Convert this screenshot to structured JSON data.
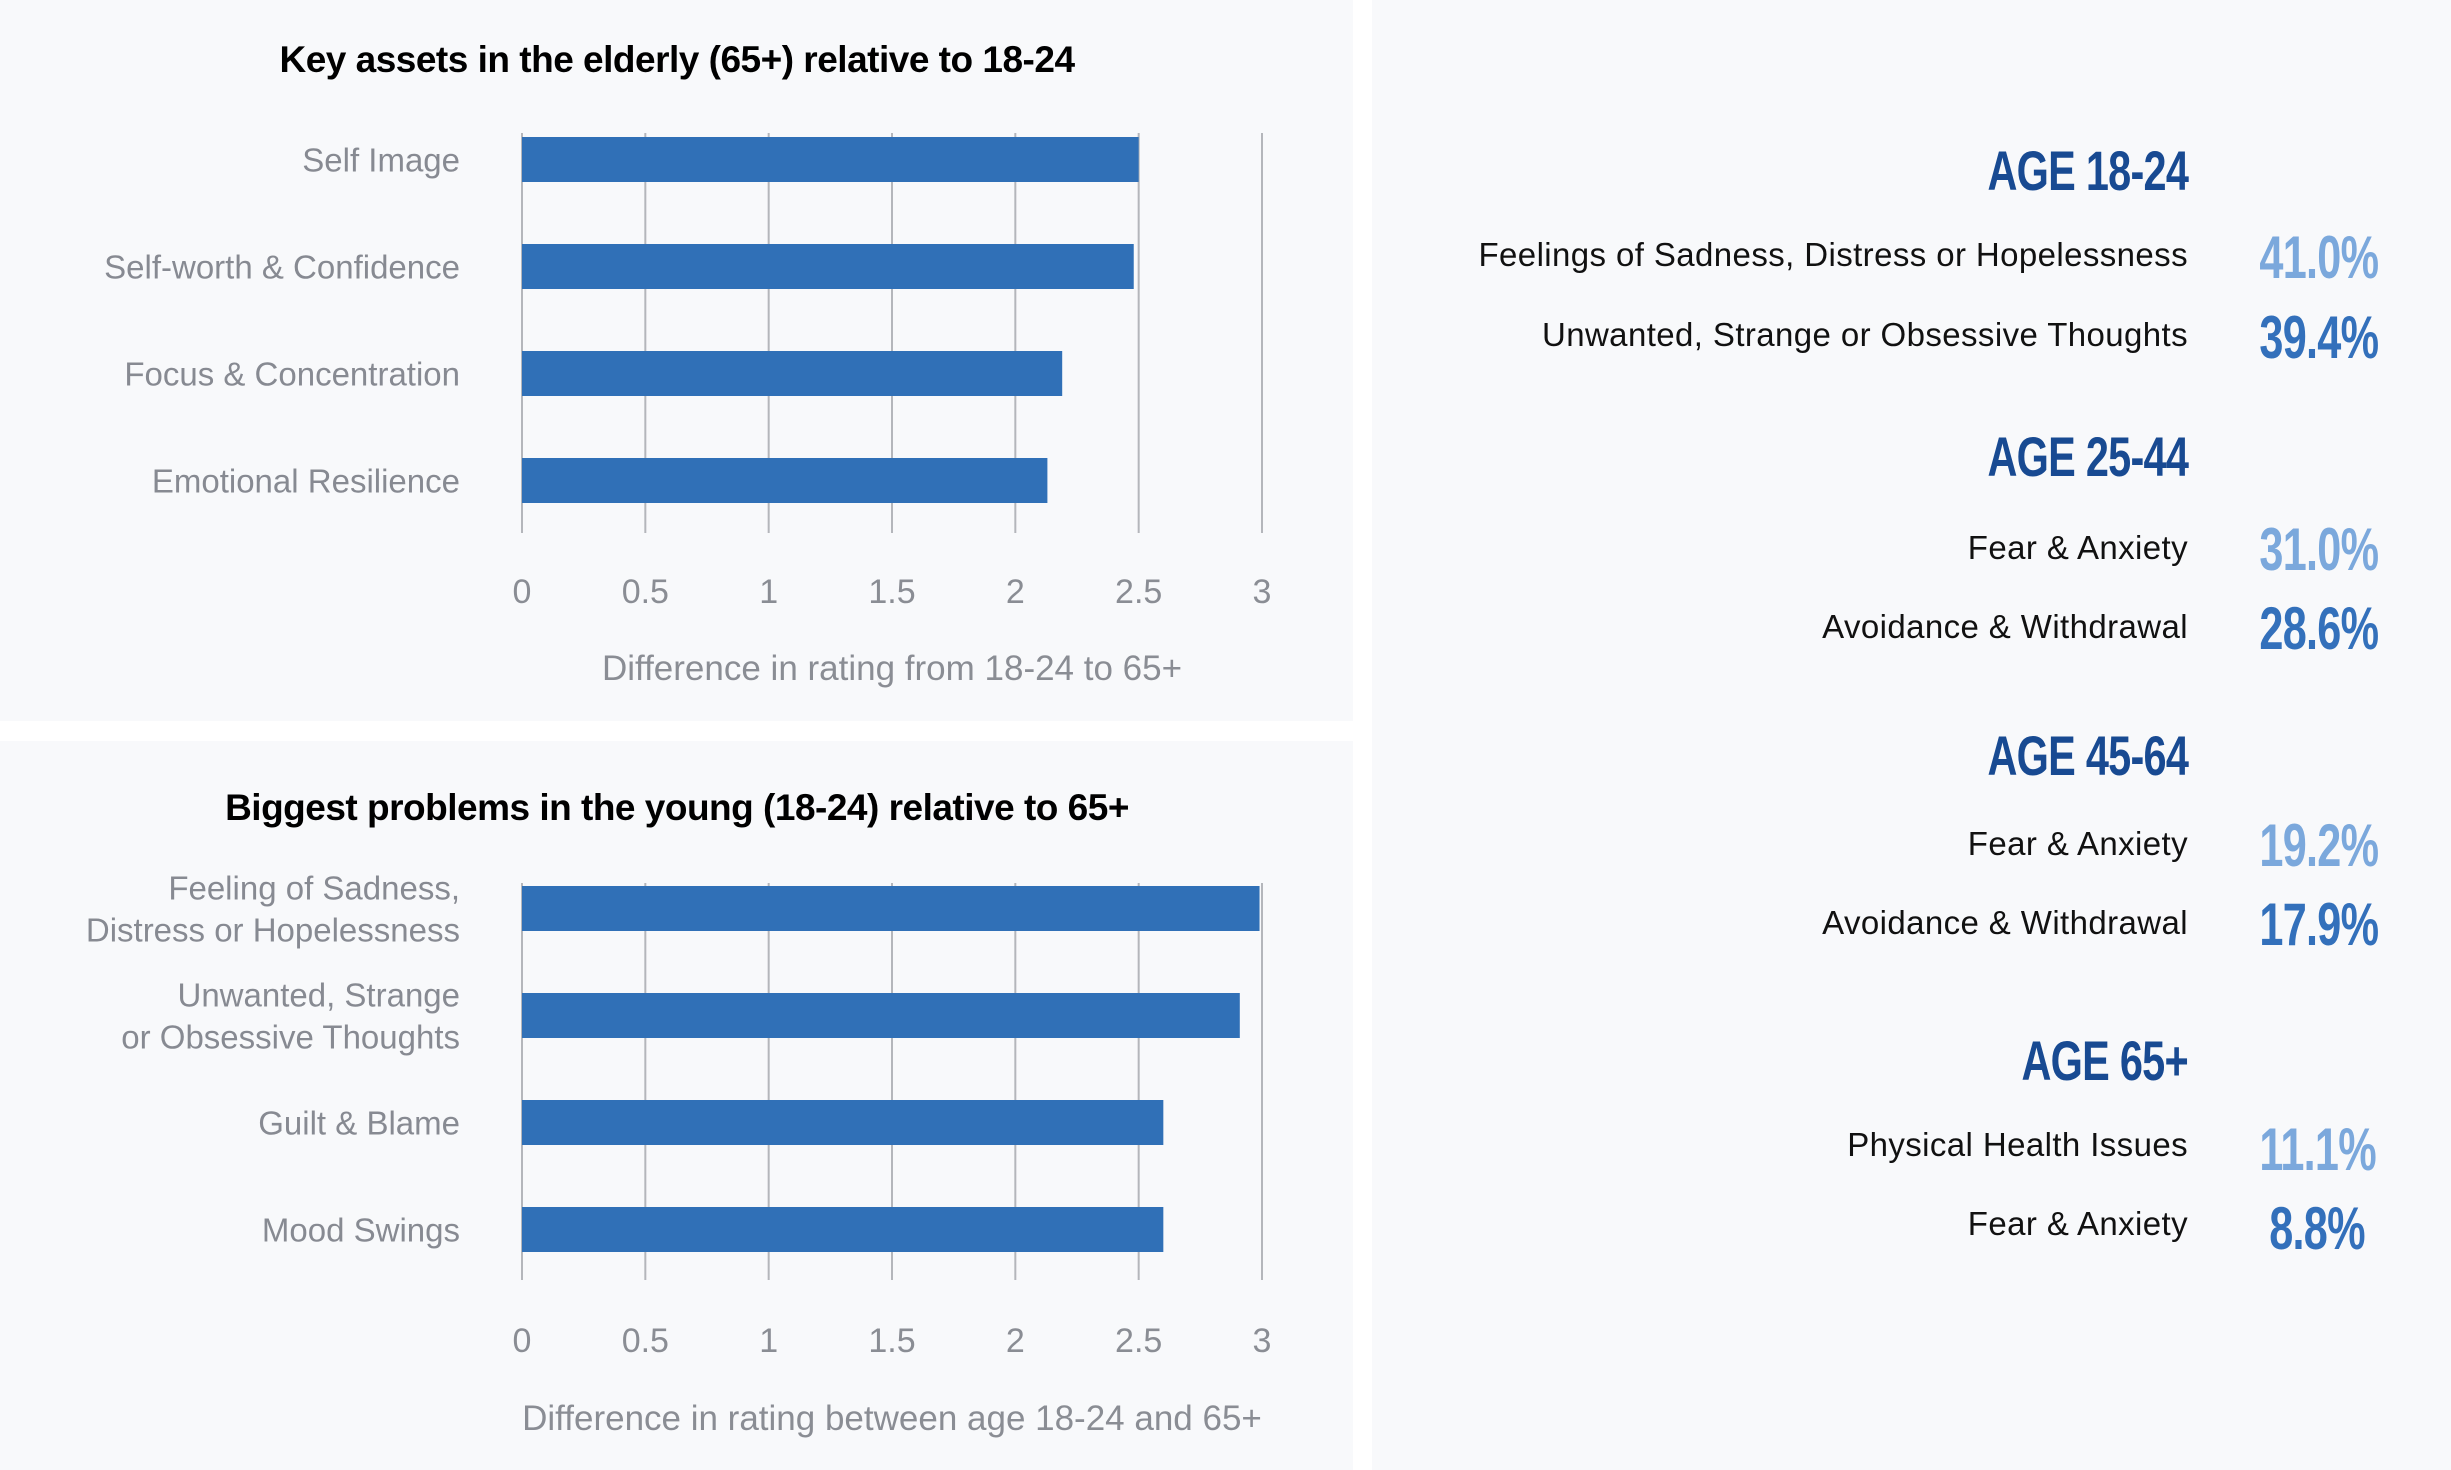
{
  "colors": {
    "bar": "#3070b7",
    "heading": "#184a92",
    "value_light": "#7ba8dc",
    "value_dark": "#3370bb",
    "panel_bg": "#f8f9fb"
  },
  "chart_data": [
    {
      "type": "bar",
      "orientation": "horizontal",
      "title": "Key assets in the elderly (65+) relative to 18-24",
      "categories": [
        "Self Image",
        "Self-worth & Confidence",
        "Focus & Concentration",
        "Emotional Resilience"
      ],
      "values": [
        2.5,
        2.48,
        2.19,
        2.13
      ],
      "xlabel": "Difference in rating from 18-24 to 65+",
      "ylabel": "",
      "xlim": [
        0,
        3
      ],
      "xticks": [
        "0",
        "0.5",
        "1",
        "1.5",
        "2",
        "2.5",
        "3"
      ],
      "grid": "vertical",
      "legend": "none"
    },
    {
      "type": "bar",
      "orientation": "horizontal",
      "title": "Biggest problems in the young (18-24) relative to 65+",
      "categories": [
        [
          "Feeling of Sadness,",
          "Distress or Hopelessness"
        ],
        [
          "Unwanted, Strange",
          "or Obsessive Thoughts"
        ],
        [
          "Guilt & Blame"
        ],
        [
          "Mood Swings"
        ]
      ],
      "values": [
        2.99,
        2.91,
        2.6,
        2.6
      ],
      "xlabel": "Difference in rating between age 18-24 and 65+",
      "ylabel": "",
      "xlim": [
        0,
        3
      ],
      "xticks": [
        "0",
        "0.5",
        "1",
        "1.5",
        "2",
        "2.5",
        "3"
      ],
      "grid": "vertical",
      "legend": "none"
    }
  ],
  "age_groups": [
    {
      "heading": "AGE 18-24",
      "items": [
        {
          "label": "Feelings of Sadness, Distress or Hopelessness",
          "value": "41.0%",
          "tone": "light"
        },
        {
          "label": "Unwanted, Strange or Obsessive Thoughts",
          "value": "39.4%",
          "tone": "dark"
        }
      ]
    },
    {
      "heading": "AGE 25-44",
      "items": [
        {
          "label": "Fear & Anxiety",
          "value": "31.0%",
          "tone": "light"
        },
        {
          "label": "Avoidance & Withdrawal",
          "value": "28.6%",
          "tone": "dark"
        }
      ]
    },
    {
      "heading": "AGE 45-64",
      "items": [
        {
          "label": "Fear & Anxiety",
          "value": "19.2%",
          "tone": "light"
        },
        {
          "label": "Avoidance & Withdrawal",
          "value": "17.9%",
          "tone": "dark"
        }
      ]
    },
    {
      "heading": "AGE 65+",
      "items": [
        {
          "label": "Physical Health Issues",
          "value": "11.1%",
          "tone": "light"
        },
        {
          "label": "Fear & Anxiety",
          "value": "8.8%",
          "tone": "dark"
        }
      ]
    }
  ]
}
